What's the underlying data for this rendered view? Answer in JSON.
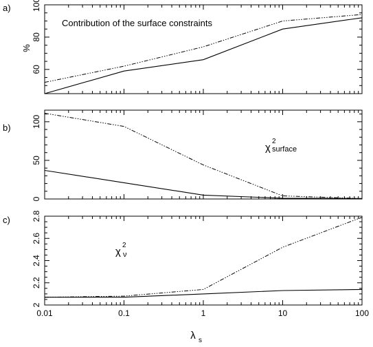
{
  "xlabel_main": "λ",
  "xlabel_sub": "s",
  "x_tick_labels": [
    "0.01",
    "0.1",
    "1",
    "10",
    "100"
  ],
  "chart_data": [
    {
      "type": "line",
      "panel": "a)",
      "annotation": "Contribution of the surface constraints",
      "ylabel": "%",
      "x": [
        0.01,
        0.1,
        1,
        10,
        100
      ],
      "xlim": [
        0.01,
        100
      ],
      "xscale": "log",
      "ylim": [
        45,
        100
      ],
      "y_ticks": [
        60,
        80,
        100
      ],
      "series": [
        {
          "style": "solid",
          "values": [
            45,
            59,
            66,
            85,
            92
          ]
        },
        {
          "style": "dash-dot",
          "values": [
            52,
            62,
            74,
            90,
            94
          ]
        }
      ]
    },
    {
      "type": "line",
      "panel": "b)",
      "annotation_main": "χ",
      "annotation_sup": "2",
      "annotation_sub": "surface",
      "ylabel": "",
      "x": [
        0.01,
        0.1,
        1,
        10,
        100
      ],
      "xlim": [
        0.01,
        100
      ],
      "xscale": "log",
      "ylim": [
        0,
        115
      ],
      "y_ticks": [
        0,
        50,
        100
      ],
      "series": [
        {
          "style": "solid",
          "values": [
            37,
            21,
            5,
            1,
            0.5
          ]
        },
        {
          "style": "dash-dot",
          "values": [
            111,
            94,
            44,
            4,
            0.5
          ]
        }
      ]
    },
    {
      "type": "line",
      "panel": "c)",
      "annotation_main": "χ",
      "annotation_sup": "2",
      "annotation_sub": "ν",
      "ylabel": "",
      "x": [
        0.01,
        0.1,
        1,
        10,
        100
      ],
      "xlim": [
        0.01,
        100
      ],
      "xscale": "log",
      "ylim": [
        2.0,
        2.8
      ],
      "y_ticks": [
        2,
        2.2,
        2.4,
        2.6,
        2.8
      ],
      "series": [
        {
          "style": "solid",
          "values": [
            2.07,
            2.07,
            2.1,
            2.13,
            2.14
          ]
        },
        {
          "style": "dash-dot",
          "values": [
            2.07,
            2.08,
            2.14,
            2.52,
            2.79
          ]
        }
      ]
    }
  ]
}
